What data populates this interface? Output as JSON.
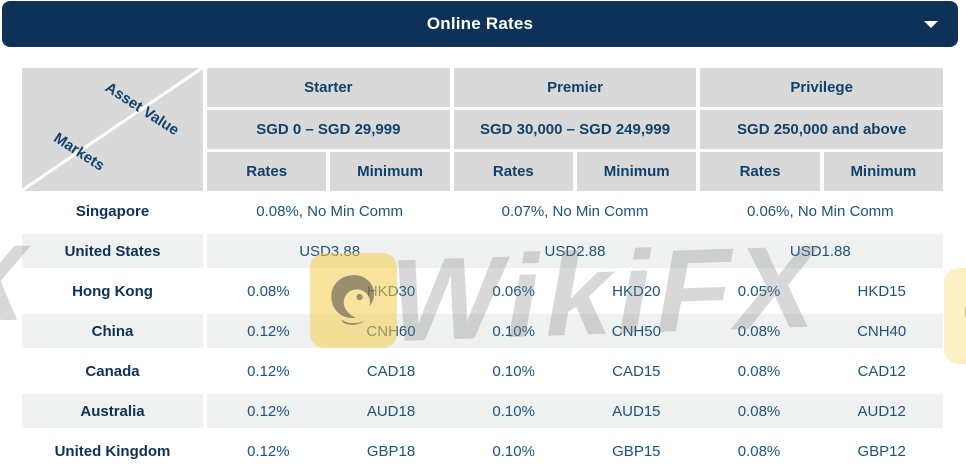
{
  "header": {
    "title": "Online Rates"
  },
  "corner": {
    "top_label": "Asset Value",
    "bottom_label": "Markets"
  },
  "tiers": [
    {
      "name": "Starter",
      "range": "SGD 0 – SGD 29,999"
    },
    {
      "name": "Premier",
      "range": "SGD 30,000 – SGD 249,999"
    },
    {
      "name": "Privilege",
      "range": "SGD 250,000 and above"
    }
  ],
  "subheaders": {
    "rates": "Rates",
    "minimum": "Minimum"
  },
  "table": {
    "rows": [
      {
        "market": "Singapore",
        "cells": [
          [
            "0.08%, No Min Comm"
          ],
          [
            "0.07%, No Min Comm"
          ],
          [
            "0.06%, No Min Comm"
          ]
        ]
      },
      {
        "market": "United States",
        "cells": [
          [
            "USD3.88"
          ],
          [
            "USD2.88"
          ],
          [
            "USD1.88"
          ]
        ]
      },
      {
        "market": "Hong Kong",
        "cells": [
          [
            "0.08%",
            "HKD30"
          ],
          [
            "0.06%",
            "HKD20"
          ],
          [
            "0.05%",
            "HKD15"
          ]
        ]
      },
      {
        "market": "China",
        "cells": [
          [
            "0.12%",
            "CNH60"
          ],
          [
            "0.10%",
            "CNH50"
          ],
          [
            "0.08%",
            "CNH40"
          ]
        ]
      },
      {
        "market": "Canada",
        "cells": [
          [
            "0.12%",
            "CAD18"
          ],
          [
            "0.10%",
            "CAD15"
          ],
          [
            "0.08%",
            "CAD12"
          ]
        ]
      },
      {
        "market": "Australia",
        "cells": [
          [
            "0.12%",
            "AUD18"
          ],
          [
            "0.10%",
            "AUD15"
          ],
          [
            "0.08%",
            "AUD12"
          ]
        ]
      },
      {
        "market": "United Kingdom",
        "cells": [
          [
            "0.12%",
            "GBP18"
          ],
          [
            "0.10%",
            "GBP15"
          ],
          [
            "0.08%",
            "GBP12"
          ]
        ]
      }
    ]
  },
  "watermark": {
    "text": "WikiFX",
    "partial_left_text": "X"
  },
  "colors": {
    "navy": "#0d3157",
    "header_gray": "#d9d9d9",
    "alt_row": "#f0f1f1",
    "head_text": "#10416b",
    "data_text": "#1b5280",
    "market_text": "#0d3157",
    "wm_yellow": "rgba(246,206,76,0.55)",
    "wm_gray": "rgba(125,125,125,0.30)"
  }
}
